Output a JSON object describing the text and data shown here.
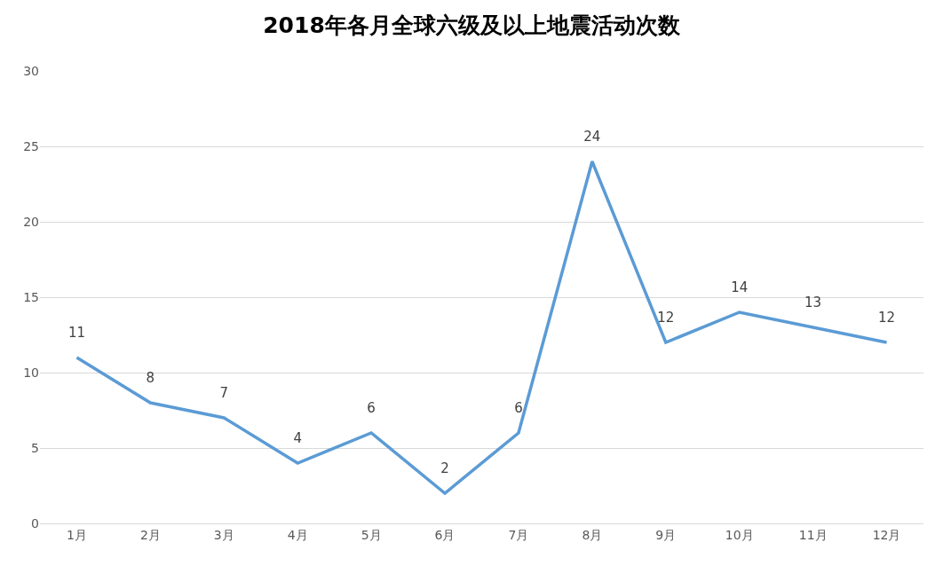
{
  "chart_data": {
    "type": "line",
    "title": "2018年各月全球六级及以上地震活动次数",
    "categories": [
      "1月",
      "2月",
      "3月",
      "4月",
      "5月",
      "6月",
      "7月",
      "8月",
      "9月",
      "10月",
      "11月",
      "12月"
    ],
    "series": [
      {
        "color": "#5b9bd5",
        "values": [
          11,
          8,
          7,
          4,
          6,
          2,
          6,
          24,
          12,
          14,
          13,
          12
        ]
      }
    ],
    "ylim": [
      0,
      30
    ],
    "yticks": [
      0,
      5,
      10,
      15,
      20,
      25,
      30
    ],
    "grid": "y",
    "data_labels": true,
    "marker": "none",
    "line_style": "solid",
    "legend": false
  }
}
